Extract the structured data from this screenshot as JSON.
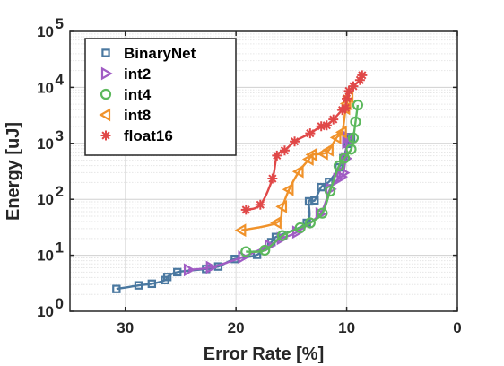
{
  "chart_data": {
    "type": "line",
    "xlabel": "Error Rate [%]",
    "ylabel": "Energy [uJ]",
    "x_reversed": true,
    "xlim": [
      35,
      0
    ],
    "ylim": [
      1,
      100000
    ],
    "yscale": "log",
    "grid": true,
    "legend_position": "top-left",
    "xticks": [
      30,
      20,
      10,
      0
    ],
    "yticks": [
      {
        "value": 1,
        "base": "10",
        "exp": "0"
      },
      {
        "value": 10,
        "base": "10",
        "exp": "1"
      },
      {
        "value": 100,
        "base": "10",
        "exp": "2"
      },
      {
        "value": 1000,
        "base": "10",
        "exp": "3"
      },
      {
        "value": 10000,
        "base": "10",
        "exp": "4"
      },
      {
        "value": 100000,
        "base": "10",
        "exp": "5"
      }
    ],
    "series": [
      {
        "name": "BinaryNet",
        "color": "#4a78a0",
        "marker": "square",
        "points": [
          [
            30.8,
            2.5
          ],
          [
            28.8,
            2.9
          ],
          [
            27.6,
            3.1
          ],
          [
            26.4,
            3.6
          ],
          [
            26.2,
            4.1
          ],
          [
            25.3,
            5.0
          ],
          [
            22.7,
            5.7
          ],
          [
            21.6,
            6.3
          ],
          [
            20.1,
            8.6
          ],
          [
            18.1,
            10.2
          ],
          [
            16.8,
            17.2
          ],
          [
            16.4,
            21.2
          ],
          [
            13.6,
            37.9
          ],
          [
            13.4,
            92.0
          ],
          [
            12.9,
            95.5
          ],
          [
            12.3,
            165
          ],
          [
            11.6,
            205
          ],
          [
            10.7,
            372
          ],
          [
            10.3,
            544
          ],
          [
            9.9,
            980
          ],
          [
            9.7,
            1185
          ],
          [
            9.6,
            1295
          ]
        ]
      },
      {
        "name": "int2",
        "color": "#a05cc4",
        "marker": "triangle-right",
        "points": [
          [
            24.3,
            5.5
          ],
          [
            22.3,
            6.1
          ],
          [
            19.4,
            9.3
          ],
          [
            17.0,
            15.0
          ],
          [
            15.9,
            20.0
          ],
          [
            14.5,
            26.0
          ],
          [
            12.4,
            55.0
          ],
          [
            11.5,
            152
          ],
          [
            10.8,
            228
          ],
          [
            10.5,
            252
          ],
          [
            10.3,
            298
          ],
          [
            10.1,
            535
          ],
          [
            10.0,
            1025
          ],
          [
            9.9,
            1275
          ]
        ]
      },
      {
        "name": "int4",
        "color": "#5cb85c",
        "marker": "circle",
        "points": [
          [
            19.1,
            11.6
          ],
          [
            17.4,
            12.3
          ],
          [
            15.8,
            22.5
          ],
          [
            14.2,
            31.0
          ],
          [
            13.3,
            37.9
          ],
          [
            12.2,
            56.5
          ],
          [
            11.5,
            140
          ],
          [
            10.7,
            395
          ],
          [
            10.2,
            545
          ],
          [
            9.6,
            785
          ],
          [
            9.4,
            1250
          ],
          [
            9.2,
            2420
          ],
          [
            9.0,
            4850
          ]
        ]
      },
      {
        "name": "int8",
        "color": "#f0922a",
        "marker": "triangle-left",
        "points": [
          [
            19.5,
            28.0
          ],
          [
            16.3,
            38.3
          ],
          [
            15.8,
            74.0
          ],
          [
            15.2,
            150
          ],
          [
            14.3,
            314
          ],
          [
            13.4,
            520
          ],
          [
            13.1,
            628
          ],
          [
            12.1,
            655
          ],
          [
            11.6,
            760
          ],
          [
            10.9,
            1270
          ],
          [
            10.4,
            1585
          ],
          [
            10.1,
            4200
          ],
          [
            10.0,
            5120
          ],
          [
            9.8,
            6830
          ]
        ]
      },
      {
        "name": "float16",
        "color": "#e04848",
        "marker": "asterisk",
        "points": [
          [
            19.1,
            65.0
          ],
          [
            17.8,
            80.0
          ],
          [
            16.7,
            235
          ],
          [
            16.3,
            605
          ],
          [
            15.6,
            745
          ],
          [
            14.7,
            1080
          ],
          [
            13.3,
            1510
          ],
          [
            12.3,
            2020
          ],
          [
            11.8,
            2100
          ],
          [
            11.2,
            2680
          ],
          [
            10.4,
            3950
          ],
          [
            10.1,
            4300
          ],
          [
            10.0,
            6300
          ],
          [
            9.8,
            8630
          ],
          [
            9.4,
            10500
          ],
          [
            8.8,
            13500
          ],
          [
            8.6,
            16500
          ]
        ]
      }
    ]
  }
}
